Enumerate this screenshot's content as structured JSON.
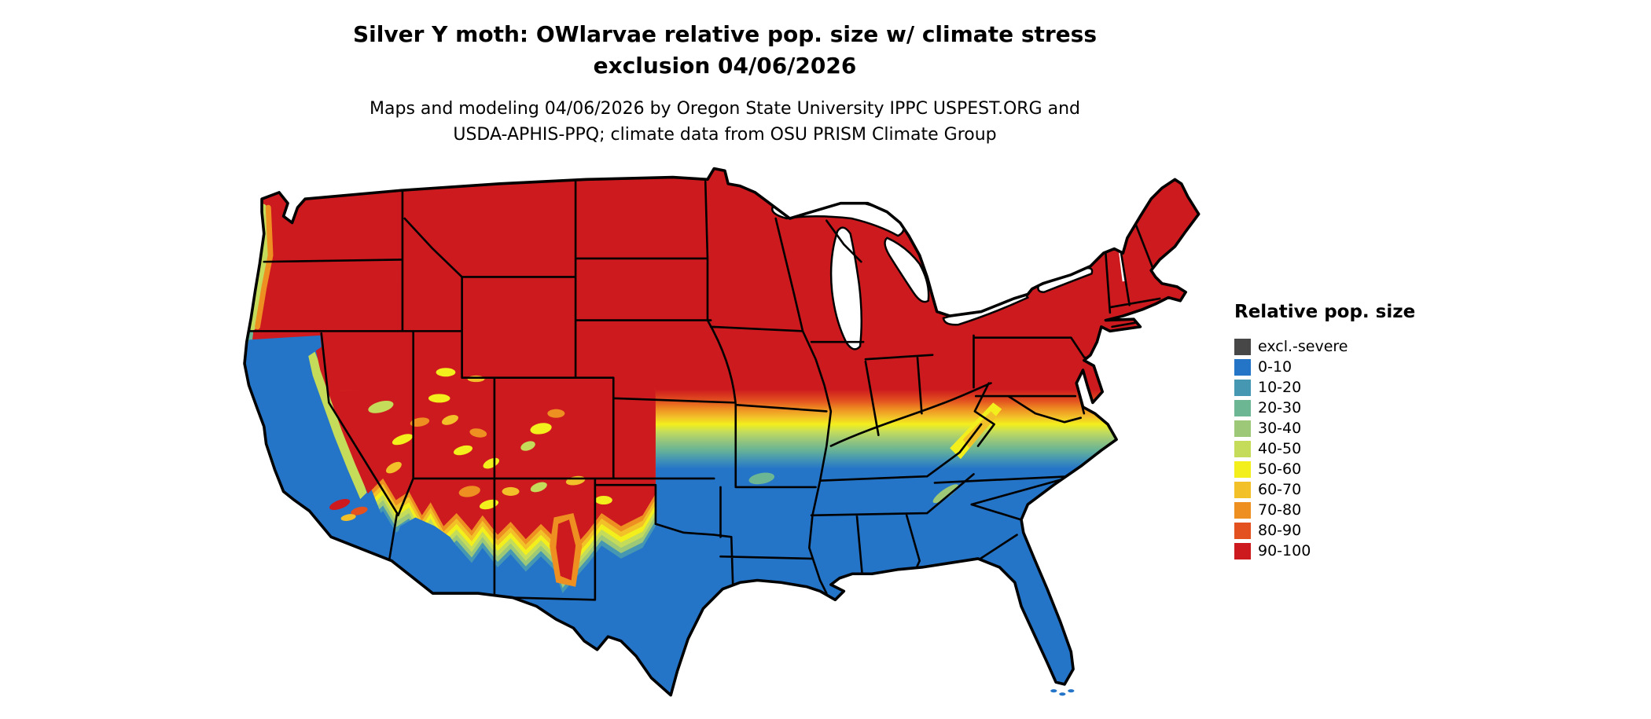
{
  "header": {
    "title_line1": "Silver Y moth: OWlarvae relative pop. size w/ climate stress",
    "title_line2": "exclusion 04/06/2026",
    "subtitle_line1": "Maps and modeling 04/06/2026 by Oregon State University IPPC USPEST.ORG and",
    "subtitle_line2": "USDA-APHIS-PPQ; climate data from OSU PRISM Climate Group"
  },
  "map": {
    "region": "Continental United States",
    "pattern": "Red (90-100) across the northern states and western mountains; transition bands of orange, yellow and green near 38-39N; blue (0-10) across the southern states, Pacific coast lowlands and southwestern deserts."
  },
  "legend": {
    "title": "Relative pop. size",
    "items": [
      {
        "label": "excl.-severe",
        "color": "#474747"
      },
      {
        "label": "0-10",
        "color": "#2474c8"
      },
      {
        "label": "10-20",
        "color": "#4697b2"
      },
      {
        "label": "20-30",
        "color": "#6cb693"
      },
      {
        "label": "30-40",
        "color": "#9cc878"
      },
      {
        "label": "40-50",
        "color": "#c4dc5a"
      },
      {
        "label": "50-60",
        "color": "#f3ef1d"
      },
      {
        "label": "60-70",
        "color": "#f2c029"
      },
      {
        "label": "70-80",
        "color": "#ee8f22"
      },
      {
        "label": "80-90",
        "color": "#e2511f"
      },
      {
        "label": "90-100",
        "color": "#cd1a1e"
      }
    ]
  }
}
